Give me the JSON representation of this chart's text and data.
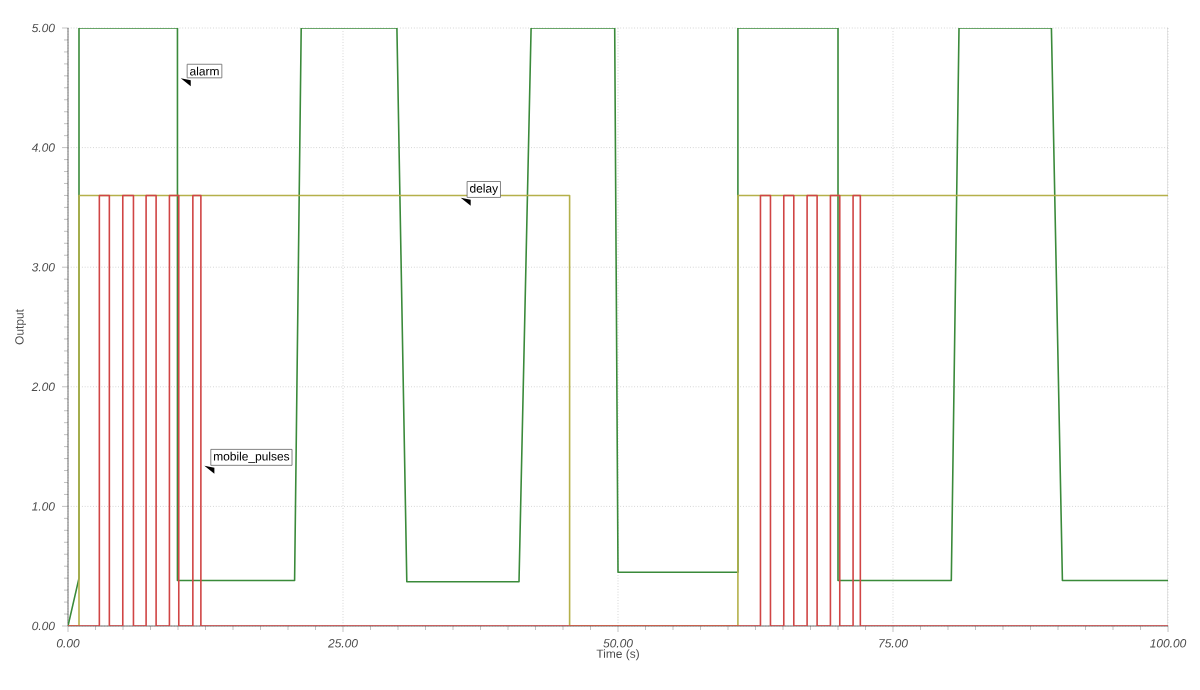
{
  "chart_data": {
    "type": "line",
    "xlabel": "Time (s)",
    "ylabel": "Output",
    "xlim": [
      0,
      100
    ],
    "ylim": [
      0,
      5
    ],
    "xticks": [
      {
        "value": 0,
        "label": "0.00"
      },
      {
        "value": 25,
        "label": "25.00"
      },
      {
        "value": 50,
        "label": "50.00"
      },
      {
        "value": 75,
        "label": "75.00"
      },
      {
        "value": 100,
        "label": "100.00"
      }
    ],
    "yticks": [
      {
        "value": 0,
        "label": "0.00"
      },
      {
        "value": 1,
        "label": "1.00"
      },
      {
        "value": 2,
        "label": "2.00"
      },
      {
        "value": 3,
        "label": "3.00"
      },
      {
        "value": 4,
        "label": "4.00"
      },
      {
        "value": 5,
        "label": "5.00"
      }
    ],
    "grid": true,
    "marker": "none",
    "line_style": "solid",
    "series": [
      {
        "color": "#3a8a3a",
        "x": [
          0,
          1.0,
          1.0,
          9.95,
          9.95,
          20.6,
          21.2,
          29.9,
          30.8,
          41.0,
          42.1,
          49.7,
          50.0,
          60.9,
          60.9,
          70.0,
          70.0,
          80.3,
          81.0,
          89.4,
          90.4,
          100
        ],
        "values": [
          0,
          0.4,
          5,
          5,
          0.38,
          0.38,
          5,
          5,
          0.37,
          0.37,
          5,
          5,
          0.45,
          0.45,
          5,
          5,
          0.38,
          0.38,
          5,
          5,
          0.38,
          0.38
        ]
      },
      {
        "color": "#b5b04a",
        "x": [
          0,
          1.0,
          1.0,
          45.6,
          45.6,
          60.9,
          60.9,
          100
        ],
        "values": [
          0,
          0,
          3.6,
          3.6,
          0,
          0,
          3.6,
          3.6
        ]
      },
      {
        "color": "#d04545",
        "x": [
          0,
          2.85,
          2.85,
          3.76,
          3.76,
          4.98,
          4.98,
          5.95,
          5.95,
          7.1,
          7.1,
          8.01,
          8.01,
          9.22,
          9.22,
          10.07,
          10.07,
          11.35,
          11.35,
          12.08,
          12.08,
          62.95,
          62.95,
          63.86,
          63.86,
          65.07,
          65.07,
          65.98,
          65.98,
          67.19,
          67.19,
          68.1,
          68.1,
          69.31,
          69.31,
          70.16,
          70.16,
          71.37,
          71.37,
          72.03,
          72.03,
          100
        ],
        "values": [
          0,
          0,
          3.6,
          3.6,
          0,
          0,
          3.6,
          3.6,
          0,
          0,
          3.6,
          3.6,
          0,
          0,
          3.6,
          3.6,
          0,
          0,
          3.6,
          3.6,
          0,
          0,
          3.6,
          3.6,
          0,
          0,
          3.6,
          3.6,
          0,
          0,
          3.6,
          3.6,
          0,
          0,
          3.6,
          3.6,
          0,
          0,
          3.6,
          3.6,
          0,
          0
        ]
      }
    ],
    "annotations": [
      {
        "text": "alarm",
        "x": 10.25,
        "y": 4.58
      },
      {
        "text": "delay",
        "x": 35.7,
        "y": 3.58
      },
      {
        "text": "mobile_pulses",
        "x": 12.4,
        "y": 1.34
      }
    ]
  }
}
